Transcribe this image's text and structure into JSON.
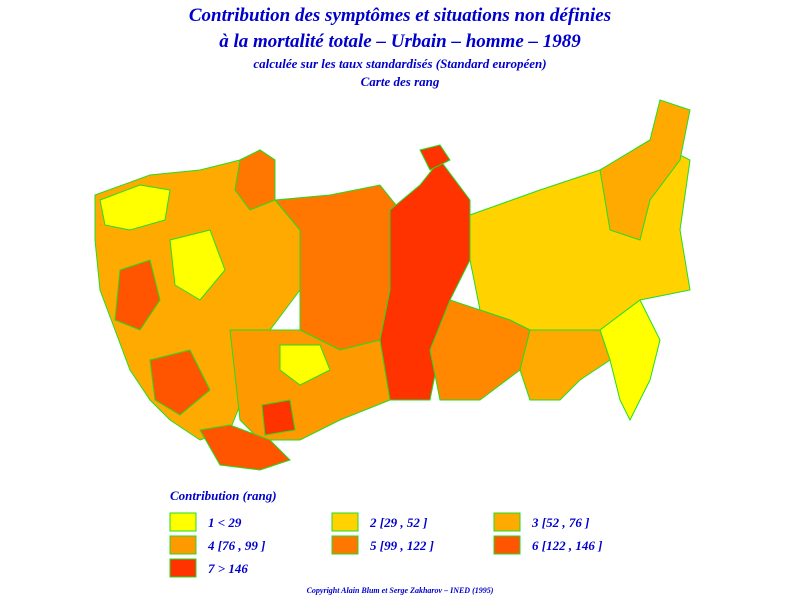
{
  "header": {
    "title_lines": [
      "Contribution des symptômes et situations non définies",
      "à la mortalité totale – Urbain – homme – 1989"
    ],
    "subtitle": "calculée sur les taux standardisés (Standard européen)",
    "map_kind": "Carte des rang"
  },
  "legend": {
    "title": "Contribution (rang)",
    "items": [
      {
        "label": "1 < 29",
        "color": "#ffff00"
      },
      {
        "label": "2 [29 , 52 ]",
        "color": "#ffd200"
      },
      {
        "label": "3 [52 , 76 ]",
        "color": "#ffaa00"
      },
      {
        "label": "4 [76 , 99 ]",
        "color": "#ff9900"
      },
      {
        "label": "5 [99 , 122 ]",
        "color": "#ff7700"
      },
      {
        "label": "6 [122 , 146 ]",
        "color": "#ff5500"
      },
      {
        "label": "7 > 146",
        "color": "#ff3300"
      }
    ]
  },
  "footer": "Copyright Alain Blum et Serge Zakharov – INED (1995)"
}
